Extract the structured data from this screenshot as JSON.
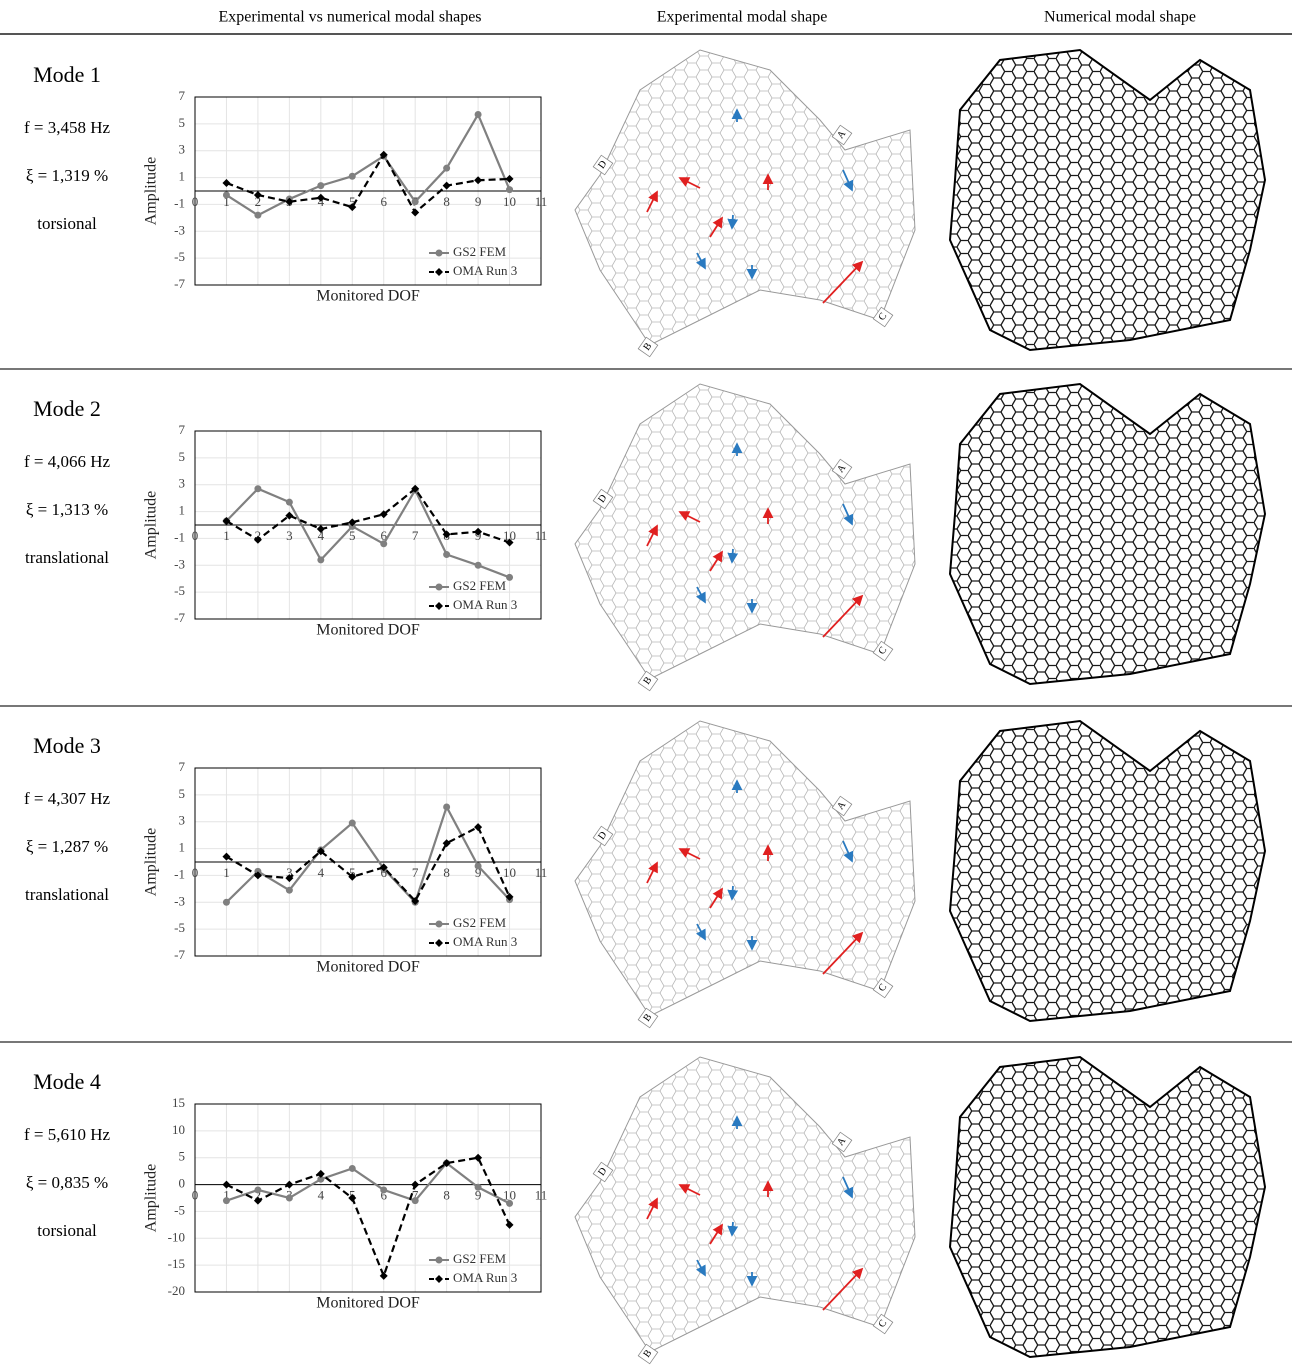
{
  "header": {
    "columns": [
      "Experimental vs numerical modal shapes",
      "Experimental modal shape",
      "Numerical modal shape"
    ]
  },
  "modes": [
    {
      "title": "Mode 1",
      "frequency": "f = 3,458 Hz",
      "damping": "ξ = 1,319 %",
      "shape": "torsional"
    },
    {
      "title": "Mode 2",
      "frequency": "f = 4,066 Hz",
      "damping": "ξ = 1,313 %",
      "shape": "translational"
    },
    {
      "title": "Mode 3",
      "frequency": "f = 4,307 Hz",
      "damping": "ξ = 1,287 %",
      "shape": "translational"
    },
    {
      "title": "Mode 4",
      "frequency": "f = 5,610 Hz",
      "damping": "ξ = 0,835 %",
      "shape": "torsional"
    }
  ],
  "experimental_labels": [
    "A",
    "B",
    "C",
    "D"
  ],
  "chart_data": [
    {
      "type": "line",
      "x_label": "Monitored DOF",
      "y_label": "Amplitude",
      "grid": true,
      "legend": "lower right",
      "x": [
        1,
        2,
        3,
        4,
        5,
        6,
        7,
        8,
        9,
        10
      ],
      "xlim": [
        0,
        11
      ],
      "xticks": [
        0,
        1,
        2,
        3,
        4,
        5,
        6,
        7,
        8,
        9,
        10,
        11
      ],
      "ylim": [
        -7,
        7
      ],
      "yticks": [
        -7,
        -5,
        -3,
        -1,
        1,
        3,
        5,
        7
      ],
      "series": [
        {
          "name": "GS2 FEM",
          "color": "#808080",
          "line_style": "solid",
          "marker": "circle",
          "values": [
            -0.3,
            -1.8,
            -0.6,
            0.4,
            1.1,
            2.6,
            -0.8,
            1.7,
            5.7,
            0.1
          ]
        },
        {
          "name": "OMA Run 3",
          "color": "#000000",
          "line_style": "dashed",
          "marker": "diamond",
          "values": [
            0.6,
            -0.3,
            -0.8,
            -0.5,
            -1.2,
            2.7,
            -1.6,
            0.4,
            0.8,
            0.9
          ]
        }
      ]
    },
    {
      "type": "line",
      "x_label": "Monitored DOF",
      "y_label": "Amplitude",
      "grid": true,
      "legend": "lower right",
      "x": [
        1,
        2,
        3,
        4,
        5,
        6,
        7,
        8,
        9,
        10
      ],
      "xlim": [
        0,
        11
      ],
      "xticks": [
        0,
        1,
        2,
        3,
        4,
        5,
        6,
        7,
        8,
        9,
        10,
        11
      ],
      "ylim": [
        -7,
        7
      ],
      "yticks": [
        -7,
        -5,
        -3,
        -1,
        1,
        3,
        5,
        7
      ],
      "series": [
        {
          "name": "GS2 FEM",
          "color": "#808080",
          "line_style": "solid",
          "marker": "circle",
          "values": [
            0.3,
            2.7,
            1.7,
            -2.6,
            -0.1,
            -1.4,
            2.6,
            -2.2,
            -3.0,
            -3.9
          ]
        },
        {
          "name": "OMA Run 3",
          "color": "#000000",
          "line_style": "dashed",
          "marker": "diamond",
          "values": [
            0.3,
            -1.1,
            0.7,
            -0.3,
            0.2,
            0.8,
            2.7,
            -0.7,
            -0.5,
            -1.3
          ]
        }
      ]
    },
    {
      "type": "line",
      "x_label": "Monitored DOF",
      "y_label": "Amplitude",
      "grid": true,
      "legend": "lower right",
      "x": [
        1,
        2,
        3,
        4,
        5,
        6,
        7,
        8,
        9,
        10
      ],
      "xlim": [
        0,
        11
      ],
      "xticks": [
        0,
        1,
        2,
        3,
        4,
        5,
        6,
        7,
        8,
        9,
        10,
        11
      ],
      "ylim": [
        -7,
        7
      ],
      "yticks": [
        -7,
        -5,
        -3,
        -1,
        1,
        3,
        5,
        7
      ],
      "series": [
        {
          "name": "GS2 FEM",
          "color": "#808080",
          "line_style": "solid",
          "marker": "circle",
          "values": [
            -3.0,
            -0.7,
            -2.1,
            0.9,
            2.9,
            -0.5,
            -3.0,
            4.1,
            -0.3,
            -2.8
          ]
        },
        {
          "name": "OMA Run 3",
          "color": "#000000",
          "line_style": "dashed",
          "marker": "diamond",
          "values": [
            0.4,
            -1.0,
            -1.2,
            0.8,
            -1.1,
            -0.4,
            -2.9,
            1.4,
            2.6,
            -2.6
          ]
        }
      ]
    },
    {
      "type": "line",
      "x_label": "Monitored DOF",
      "y_label": "Amplitude",
      "grid": true,
      "legend": "lower right",
      "x": [
        1,
        2,
        3,
        4,
        5,
        6,
        7,
        8,
        9,
        10
      ],
      "xlim": [
        0,
        11
      ],
      "xticks": [
        0,
        1,
        2,
        3,
        4,
        5,
        6,
        7,
        8,
        9,
        10,
        11
      ],
      "ylim": [
        -20,
        15
      ],
      "yticks": [
        -20,
        -15,
        -10,
        -5,
        0,
        5,
        10,
        15
      ],
      "series": [
        {
          "name": "GS2 FEM",
          "color": "#808080",
          "line_style": "solid",
          "marker": "circle",
          "values": [
            -3,
            -1,
            -2.5,
            1,
            3,
            -1,
            -3,
            4,
            -0.5,
            -3.5
          ]
        },
        {
          "name": "OMA Run 3",
          "color": "#000000",
          "line_style": "dashed",
          "marker": "diamond",
          "values": [
            0,
            -3,
            0,
            2,
            -2.5,
            -17,
            0,
            4,
            5,
            -7.5
          ]
        }
      ]
    }
  ]
}
